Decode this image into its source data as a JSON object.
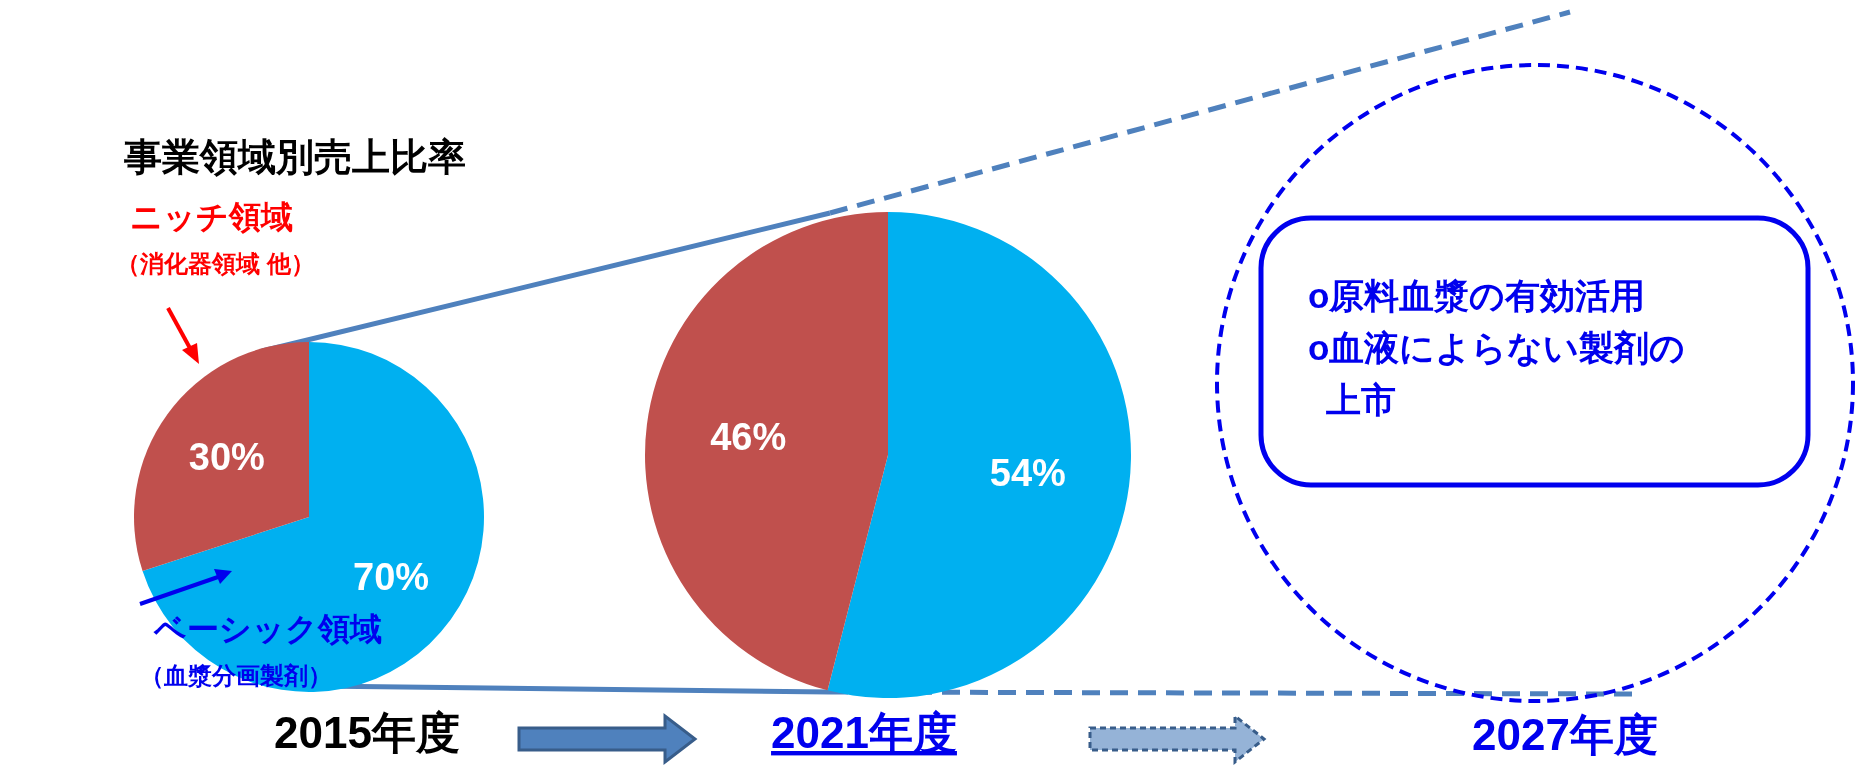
{
  "chart_data": [
    {
      "type": "pie",
      "title": "事業領域別売上比率",
      "xlabel": "2015年度",
      "categories": [
        "ベーシック領域（血漿分画製剤）",
        "ニッチ領域（消化器領域 他）"
      ],
      "values": [
        70,
        30
      ],
      "value_labels": [
        "70%",
        "30%"
      ],
      "colors": [
        "#00b0f0",
        "#c0504d"
      ]
    },
    {
      "type": "pie",
      "xlabel": "2021年度",
      "categories": [
        null,
        null
      ],
      "values": [
        54,
        46
      ],
      "value_labels": [
        "54%",
        "46%"
      ],
      "colors": [
        "#00b0f0",
        "#c0504d"
      ]
    },
    {
      "type": "other",
      "xlabel": "2027年度",
      "annotations": [
        "o原料血漿の有効活用",
        "o血液によらない製剤の上市"
      ]
    }
  ]
}
